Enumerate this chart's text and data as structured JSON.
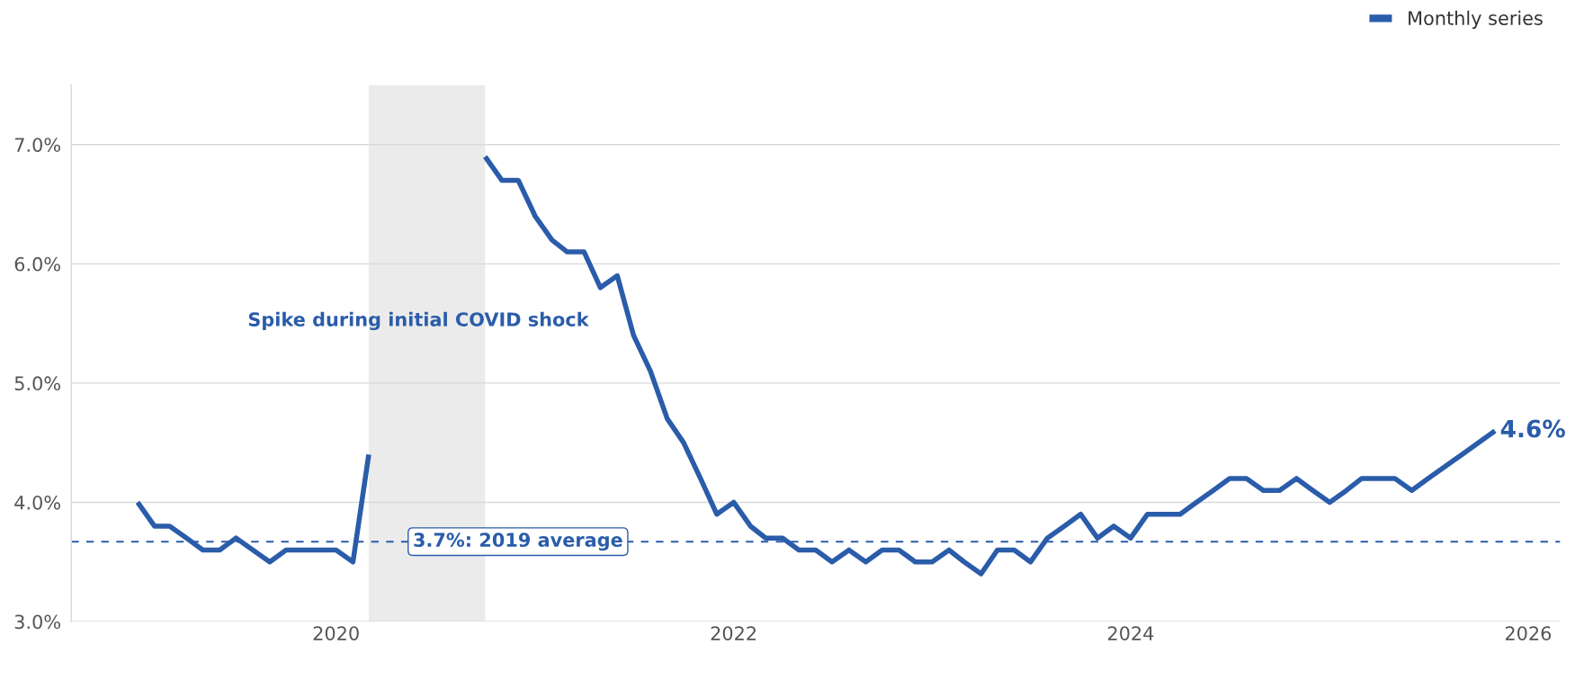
{
  "chart_data": {
    "type": "line",
    "x": [
      "2019-01",
      "2019-02",
      "2019-03",
      "2019-04",
      "2019-05",
      "2019-06",
      "2019-07",
      "2019-08",
      "2019-09",
      "2019-10",
      "2019-11",
      "2019-12",
      "2020-01",
      "2020-02",
      "2020-03",
      "2020-04",
      "2020-05",
      "2020-06",
      "2020-07",
      "2020-08",
      "2020-09",
      "2020-10",
      "2020-11",
      "2020-12",
      "2021-01",
      "2021-02",
      "2021-03",
      "2021-04",
      "2021-05",
      "2021-06",
      "2021-07",
      "2021-08",
      "2021-09",
      "2021-10",
      "2021-11",
      "2021-12",
      "2022-01",
      "2022-02",
      "2022-03",
      "2022-04",
      "2022-05",
      "2022-06",
      "2022-07",
      "2022-08",
      "2022-09",
      "2022-10",
      "2022-11",
      "2022-12",
      "2023-01",
      "2023-02",
      "2023-03",
      "2023-04",
      "2023-05",
      "2023-06",
      "2023-07",
      "2023-08",
      "2023-09",
      "2023-10",
      "2023-11",
      "2023-12",
      "2024-01",
      "2024-02",
      "2024-03",
      "2024-04",
      "2024-05",
      "2024-06",
      "2024-07",
      "2024-08",
      "2024-09",
      "2024-10",
      "2024-11",
      "2024-12",
      "2025-01",
      "2025-02",
      "2025-03",
      "2025-04",
      "2025-05",
      "2025-06",
      "2025-07",
      "2025-08",
      "2025-09",
      "2025-11"
    ],
    "series": [
      {
        "name": "Monthly series",
        "color": "#2a5caa",
        "values": [
          4.0,
          3.8,
          3.8,
          3.7,
          3.6,
          3.6,
          3.7,
          3.6,
          3.5,
          3.6,
          3.6,
          3.6,
          3.6,
          3.5,
          4.4,
          null,
          null,
          null,
          null,
          null,
          null,
          6.9,
          6.7,
          6.7,
          6.4,
          6.2,
          6.1,
          6.1,
          5.8,
          5.9,
          5.4,
          5.1,
          4.7,
          4.5,
          4.2,
          3.9,
          4.0,
          3.8,
          3.7,
          3.7,
          3.6,
          3.6,
          3.5,
          3.6,
          3.5,
          3.6,
          3.6,
          3.5,
          3.5,
          3.6,
          3.5,
          3.4,
          3.6,
          3.6,
          3.5,
          3.7,
          3.8,
          3.9,
          3.7,
          3.8,
          3.7,
          3.9,
          3.9,
          3.9,
          4.0,
          4.1,
          4.2,
          4.2,
          4.1,
          4.1,
          4.2,
          4.1,
          4.0,
          4.1,
          4.2,
          4.2,
          4.2,
          4.1,
          4.2,
          4.3,
          4.4,
          4.6
        ],
        "value_labels": [
          null,
          null,
          null,
          null,
          null,
          null,
          null,
          null,
          null,
          null,
          null,
          null,
          null,
          null,
          null,
          null,
          null,
          null,
          null,
          null,
          null,
          null,
          null,
          null,
          null,
          null,
          null,
          null,
          null,
          null,
          null,
          null,
          null,
          null,
          null,
          null,
          null,
          null,
          null,
          null,
          null,
          null,
          null,
          null,
          null,
          null,
          null,
          null,
          null,
          null,
          null,
          null,
          null,
          null,
          null,
          null,
          null,
          null,
          null,
          null,
          null,
          null,
          null,
          null,
          null,
          null,
          null,
          null,
          null,
          null,
          null,
          null,
          null,
          null,
          null,
          null,
          null,
          null,
          null,
          null,
          null,
          "4.6%"
        ]
      }
    ],
    "xlim": [
      "2018-09",
      "2026-03"
    ],
    "xticks": [
      {
        "value": "2020",
        "label": "2020"
      },
      {
        "value": "2022",
        "label": "2022"
      },
      {
        "value": "2024",
        "label": "2024"
      },
      {
        "value": "2026",
        "label": "2026"
      }
    ],
    "ylim": [
      3.0,
      7.5
    ],
    "yticks": [
      {
        "value": 3,
        "label": "3.0%"
      },
      {
        "value": 4,
        "label": "4.0%"
      },
      {
        "value": 5,
        "label": "5.0%"
      },
      {
        "value": 6,
        "label": "6.0%"
      },
      {
        "value": 7,
        "label": "7.0%"
      }
    ],
    "ref_lines": [
      {
        "axis": "y",
        "value": 3.67,
        "label": "3.7%: 2019 average",
        "color": "#2a5caa",
        "line_style": "dashed"
      }
    ],
    "bands": [
      {
        "axis": "x",
        "from": "2020-03",
        "to": "2020-10",
        "color": "#ebebeb"
      }
    ],
    "annotations": [
      "Spike during initial COVID shock"
    ],
    "grid": "y",
    "legend": "top right",
    "line_style": "solid",
    "marker": "none"
  }
}
